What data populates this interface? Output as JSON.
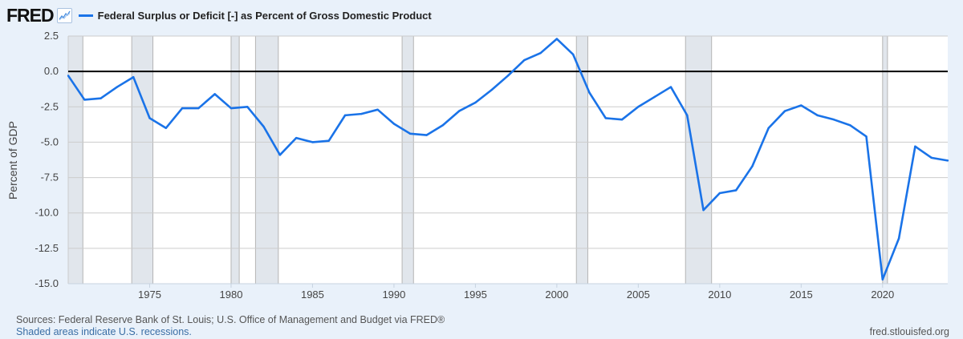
{
  "header": {
    "logo": "FRED",
    "logo_icon": "line-chart-icon",
    "series_label": "Federal Surplus or Deficit [-] as Percent of Gross Domestic Product"
  },
  "footer": {
    "sources": "Sources: Federal Reserve Bank of St. Louis; U.S. Office of Management and Budget via FRED®",
    "shaded_note": "Shaded areas indicate U.S. recessions.",
    "url": "fred.stlouisfed.org"
  },
  "colors": {
    "series": "#1a73e8",
    "recession": "#e1e6ec",
    "background": "#e9f1fa",
    "zero_line": "#000000"
  },
  "chart_data": {
    "type": "line",
    "title": "Federal Surplus or Deficit [-] as Percent of Gross Domestic Product",
    "xlabel": "",
    "ylabel": "Percent of GDP",
    "xlim": [
      1970,
      2024
    ],
    "ylim": [
      -15.0,
      2.5
    ],
    "yticks": [
      2.5,
      0.0,
      -2.5,
      -5.0,
      -7.5,
      -10.0,
      -12.5,
      -15.0
    ],
    "ytick_labels": [
      "2.5",
      "0.0",
      "-2.5",
      "-5.0",
      "-7.5",
      "-10.0",
      "-12.5",
      "-15.0"
    ],
    "xticks": [
      1975,
      1980,
      1985,
      1990,
      1995,
      2000,
      2005,
      2010,
      2015,
      2020
    ],
    "xtick_labels": [
      "1975",
      "1980",
      "1985",
      "1990",
      "1995",
      "2000",
      "2005",
      "2010",
      "2015",
      "2020"
    ],
    "grid": true,
    "legend": "top-left",
    "series": [
      {
        "name": "Federal Surplus or Deficit [-] as Percent of Gross Domestic Product",
        "x": [
          1970,
          1971,
          1972,
          1973,
          1974,
          1975,
          1976,
          1977,
          1978,
          1979,
          1980,
          1981,
          1982,
          1983,
          1984,
          1985,
          1986,
          1987,
          1988,
          1989,
          1990,
          1991,
          1992,
          1993,
          1994,
          1995,
          1996,
          1997,
          1998,
          1999,
          2000,
          2001,
          2002,
          2003,
          2004,
          2005,
          2006,
          2007,
          2008,
          2009,
          2010,
          2011,
          2012,
          2013,
          2014,
          2015,
          2016,
          2017,
          2018,
          2019,
          2020,
          2021,
          2022,
          2023,
          2024
        ],
        "values": [
          -0.3,
          -2.0,
          -1.9,
          -1.1,
          -0.4,
          -3.3,
          -4.0,
          -2.6,
          -2.6,
          -1.6,
          -2.6,
          -2.5,
          -3.9,
          -5.9,
          -4.7,
          -5.0,
          -4.9,
          -3.1,
          -3.0,
          -2.7,
          -3.7,
          -4.4,
          -4.5,
          -3.8,
          -2.8,
          -2.2,
          -1.3,
          -0.3,
          0.8,
          1.3,
          2.3,
          1.2,
          -1.5,
          -3.3,
          -3.4,
          -2.5,
          -1.8,
          -1.1,
          -3.1,
          -9.8,
          -8.6,
          -8.4,
          -6.7,
          -4.0,
          -2.8,
          -2.4,
          -3.1,
          -3.4,
          -3.8,
          -4.6,
          -14.7,
          -11.8,
          -5.3,
          -6.1,
          -6.3
        ]
      }
    ],
    "recessions": [
      [
        1970.0,
        1970.9
      ],
      [
        1973.9,
        1975.2
      ],
      [
        1980.0,
        1980.5
      ],
      [
        1981.5,
        1982.9
      ],
      [
        1990.5,
        1991.2
      ],
      [
        2001.2,
        2001.9
      ],
      [
        2007.9,
        2009.5
      ],
      [
        2020.0,
        2020.3
      ]
    ]
  }
}
